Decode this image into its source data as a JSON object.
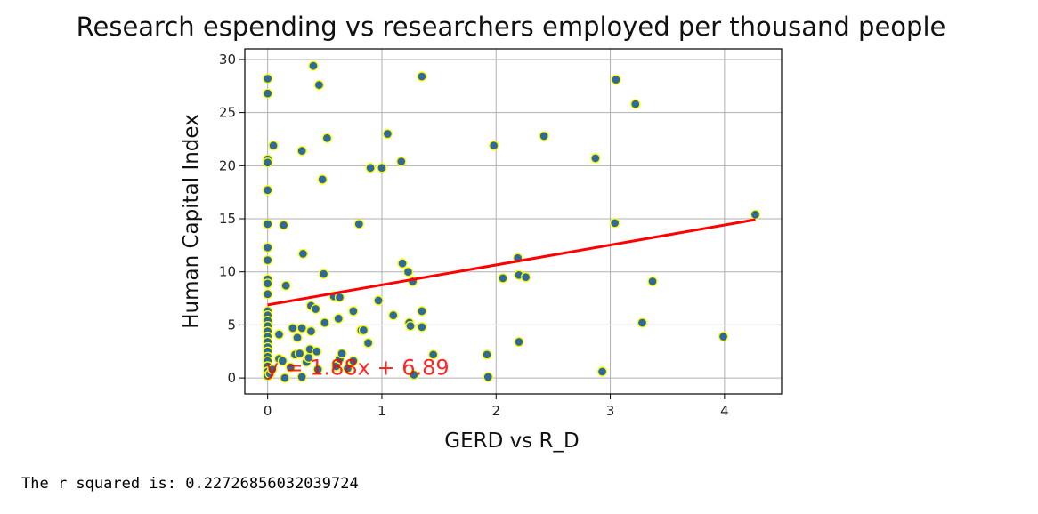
{
  "chart_data": {
    "type": "scatter",
    "title": "Research espending vs researchers employed per thousand people",
    "xlabel": "GERD vs R_D",
    "ylabel": "Human Capital Index",
    "xlim": [
      -0.2,
      4.5
    ],
    "ylim": [
      -1.5,
      31
    ],
    "xticks": [
      "0",
      "1",
      "2",
      "3",
      "4"
    ],
    "yticks": [
      "0",
      "5",
      "10",
      "15",
      "20",
      "25",
      "30"
    ],
    "grid": true,
    "point_color": "#2f6b9a",
    "point_edge_color": "#ffff00",
    "line_color": "#ff0000",
    "regression": {
      "slope": 1.88,
      "intercept": 6.89,
      "x_range": [
        0,
        4.27
      ]
    },
    "annotation": {
      "text": "y = 1.88x + 6.89",
      "x": 0,
      "y": 0.4
    },
    "points": [
      [
        0.0,
        28.2
      ],
      [
        0.0,
        26.8
      ],
      [
        0.0,
        20.6
      ],
      [
        0.0,
        20.3
      ],
      [
        0.0,
        17.7
      ],
      [
        0.0,
        14.5
      ],
      [
        0.0,
        12.3
      ],
      [
        0.0,
        11.1
      ],
      [
        0.0,
        9.3
      ],
      [
        0.0,
        8.9
      ],
      [
        0.0,
        7.9
      ],
      [
        0.0,
        6.3
      ],
      [
        0.0,
        5.9
      ],
      [
        0.0,
        5.4
      ],
      [
        0.0,
        4.9
      ],
      [
        0.0,
        4.4
      ],
      [
        0.0,
        3.9
      ],
      [
        0.0,
        3.4
      ],
      [
        0.0,
        2.9
      ],
      [
        0.0,
        2.5
      ],
      [
        0.0,
        2.0
      ],
      [
        0.0,
        1.6
      ],
      [
        0.0,
        1.1
      ],
      [
        0.0,
        0.6
      ],
      [
        0.0,
        0.2
      ],
      [
        0.02,
        0.4
      ],
      [
        0.04,
        0.8
      ],
      [
        0.05,
        21.9
      ],
      [
        0.1,
        1.8
      ],
      [
        0.1,
        4.1
      ],
      [
        0.13,
        1.6
      ],
      [
        0.14,
        14.4
      ],
      [
        0.15,
        0.0
      ],
      [
        0.16,
        8.7
      ],
      [
        0.2,
        1.0
      ],
      [
        0.22,
        4.7
      ],
      [
        0.24,
        2.2
      ],
      [
        0.26,
        3.8
      ],
      [
        0.28,
        2.3
      ],
      [
        0.3,
        21.4
      ],
      [
        0.3,
        4.7
      ],
      [
        0.3,
        0.1
      ],
      [
        0.31,
        11.7
      ],
      [
        0.34,
        1.5
      ],
      [
        0.36,
        1.9
      ],
      [
        0.37,
        2.7
      ],
      [
        0.38,
        6.8
      ],
      [
        0.38,
        4.4
      ],
      [
        0.4,
        29.4
      ],
      [
        0.42,
        6.5
      ],
      [
        0.43,
        2.5
      ],
      [
        0.44,
        0.8
      ],
      [
        0.45,
        27.6
      ],
      [
        0.48,
        18.7
      ],
      [
        0.49,
        9.8
      ],
      [
        0.5,
        5.2
      ],
      [
        0.52,
        22.6
      ],
      [
        0.58,
        7.7
      ],
      [
        0.6,
        1.1
      ],
      [
        0.62,
        5.6
      ],
      [
        0.63,
        7.6
      ],
      [
        0.63,
        1.8
      ],
      [
        0.65,
        2.3
      ],
      [
        0.7,
        0.9
      ],
      [
        0.75,
        6.3
      ],
      [
        0.75,
        1.6
      ],
      [
        0.8,
        14.5
      ],
      [
        0.82,
        4.5
      ],
      [
        0.84,
        4.5
      ],
      [
        0.88,
        3.3
      ],
      [
        0.9,
        19.8
      ],
      [
        0.97,
        7.3
      ],
      [
        1.0,
        19.8
      ],
      [
        1.05,
        23.0
      ],
      [
        1.1,
        5.9
      ],
      [
        1.17,
        20.4
      ],
      [
        1.18,
        10.8
      ],
      [
        1.23,
        10.0
      ],
      [
        1.24,
        5.2
      ],
      [
        1.25,
        4.9
      ],
      [
        1.27,
        9.1
      ],
      [
        1.28,
        0.3
      ],
      [
        1.35,
        28.4
      ],
      [
        1.35,
        6.3
      ],
      [
        1.35,
        4.8
      ],
      [
        1.45,
        2.2
      ],
      [
        1.92,
        2.2
      ],
      [
        1.93,
        0.1
      ],
      [
        1.98,
        21.9
      ],
      [
        2.06,
        9.4
      ],
      [
        2.19,
        11.3
      ],
      [
        2.2,
        9.7
      ],
      [
        2.2,
        3.4
      ],
      [
        2.26,
        9.5
      ],
      [
        2.42,
        22.8
      ],
      [
        2.87,
        20.7
      ],
      [
        2.93,
        0.6
      ],
      [
        3.04,
        14.6
      ],
      [
        3.05,
        28.1
      ],
      [
        3.22,
        25.8
      ],
      [
        3.28,
        5.2
      ],
      [
        3.37,
        9.1
      ],
      [
        3.99,
        3.9
      ],
      [
        4.27,
        15.4
      ]
    ]
  },
  "output": {
    "r_squared_text": "The r squared is: 0.22726856032039724"
  }
}
